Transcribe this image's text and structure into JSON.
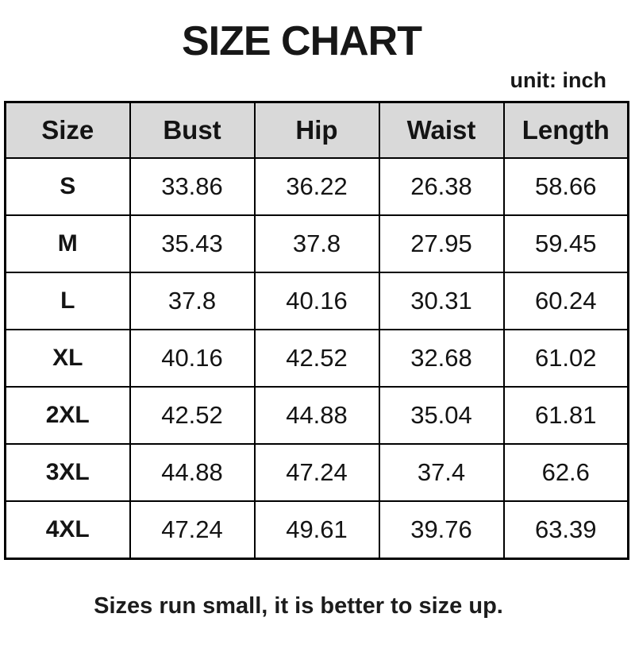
{
  "page": {
    "title": "SIZE CHART",
    "unit_label": "unit: inch",
    "footer_note": "Sizes run small, it is better to size up."
  },
  "chart_data": {
    "type": "table",
    "title": "SIZE CHART",
    "unit": "inch",
    "columns": [
      "Size",
      "Bust",
      "Hip",
      "Waist",
      "Length"
    ],
    "rows": [
      [
        "S",
        "33.86",
        "36.22",
        "26.38",
        "58.66"
      ],
      [
        "M",
        "35.43",
        "37.8",
        "27.95",
        "59.45"
      ],
      [
        "L",
        "37.8",
        "40.16",
        "30.31",
        "60.24"
      ],
      [
        "XL",
        "40.16",
        "42.52",
        "32.68",
        "61.02"
      ],
      [
        "2XL",
        "42.52",
        "44.88",
        "35.04",
        "61.81"
      ],
      [
        "3XL",
        "44.88",
        "47.24",
        "37.4",
        "62.6"
      ],
      [
        "4XL",
        "47.24",
        "49.61",
        "39.76",
        "63.39"
      ]
    ],
    "note": "Sizes run small, it is better to size up.",
    "layout_hints": {
      "header_row_shaded": true,
      "grid": true,
      "values_aligned": "center"
    }
  },
  "colors": {
    "header_bg": "#d9d9d9",
    "border": "#000000",
    "text": "#141414",
    "background": "#ffffff"
  }
}
